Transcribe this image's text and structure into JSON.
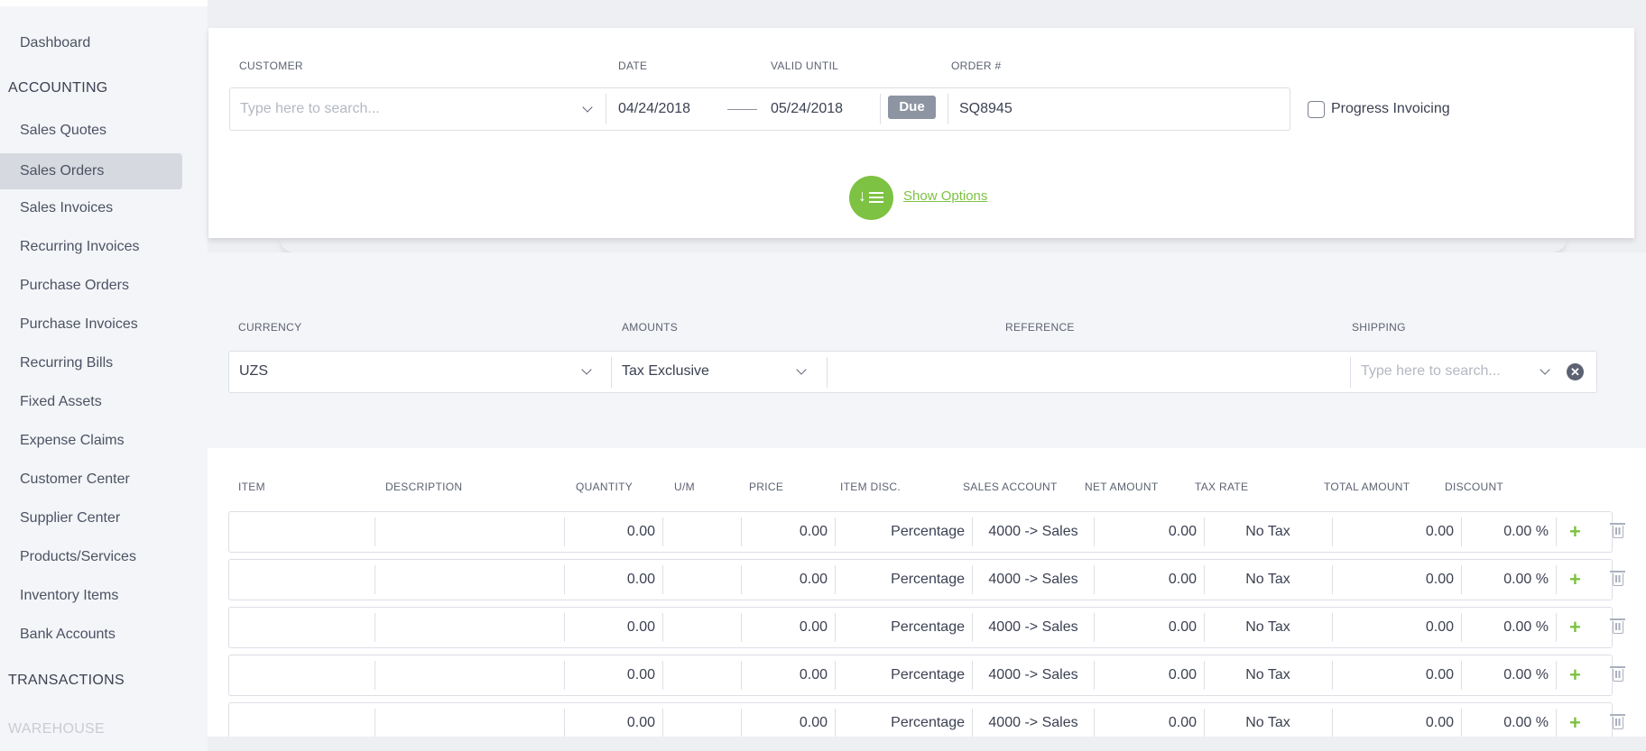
{
  "sidebar": {
    "items": [
      {
        "label": "Dashboard"
      },
      {
        "label": "Sales Quotes"
      },
      {
        "label": "Sales Orders",
        "active": true
      },
      {
        "label": "Sales Invoices"
      },
      {
        "label": "Recurring Invoices"
      },
      {
        "label": "Purchase Orders"
      },
      {
        "label": "Purchase Invoices"
      },
      {
        "label": "Recurring Bills"
      },
      {
        "label": "Fixed Assets"
      },
      {
        "label": "Expense Claims"
      },
      {
        "label": "Customer Center"
      },
      {
        "label": "Supplier Center"
      },
      {
        "label": "Products/Services"
      },
      {
        "label": "Inventory Items"
      },
      {
        "label": "Bank Accounts"
      }
    ],
    "sections": {
      "accounting": "ACCOUNTING",
      "transactions": "TRANSACTIONS",
      "warehouse": "WAREHOUSE"
    }
  },
  "order": {
    "labels": {
      "customer": "CUSTOMER",
      "date": "DATE",
      "valid_until": "VALID UNTIL",
      "order_no": "ORDER #"
    },
    "customer_placeholder": "Type here to search...",
    "date": "04/24/2018",
    "valid_until": "05/24/2018",
    "due_badge": "Due",
    "order_no": "SQ8945",
    "progress_invoicing": "Progress Invoicing",
    "show_options": "Show Options"
  },
  "details": {
    "labels": {
      "currency": "CURRENCY",
      "amounts": "AMOUNTS",
      "reference": "REFERENCE",
      "shipping": "SHIPPING"
    },
    "currency": "UZS",
    "amounts": "Tax Exclusive",
    "reference": "",
    "shipping_placeholder": "Type here to search..."
  },
  "lines": {
    "headers": [
      "ITEM",
      "DESCRIPTION",
      "QUANTITY",
      "U/M",
      "PRICE",
      "ITEM DISC.",
      "SALES ACCOUNT",
      "NET AMOUNT",
      "TAX RATE",
      "TOTAL AMOUNT",
      "DISCOUNT"
    ],
    "rows": [
      {
        "item": "",
        "description": "",
        "quantity": "0.00",
        "um": "",
        "price": "0.00",
        "item_disc": "Percentage",
        "sales_account": "4000 -> Sales",
        "net_amount": "0.00",
        "tax_rate": "No Tax",
        "total_amount": "0.00",
        "discount": "0.00 %"
      },
      {
        "item": "",
        "description": "",
        "quantity": "0.00",
        "um": "",
        "price": "0.00",
        "item_disc": "Percentage",
        "sales_account": "4000 -> Sales",
        "net_amount": "0.00",
        "tax_rate": "No Tax",
        "total_amount": "0.00",
        "discount": "0.00 %"
      },
      {
        "item": "",
        "description": "",
        "quantity": "0.00",
        "um": "",
        "price": "0.00",
        "item_disc": "Percentage",
        "sales_account": "4000 -> Sales",
        "net_amount": "0.00",
        "tax_rate": "No Tax",
        "total_amount": "0.00",
        "discount": "0.00 %"
      },
      {
        "item": "",
        "description": "",
        "quantity": "0.00",
        "um": "",
        "price": "0.00",
        "item_disc": "Percentage",
        "sales_account": "4000 -> Sales",
        "net_amount": "0.00",
        "tax_rate": "No Tax",
        "total_amount": "0.00",
        "discount": "0.00 %"
      },
      {
        "item": "",
        "description": "",
        "quantity": "0.00",
        "um": "",
        "price": "0.00",
        "item_disc": "Percentage",
        "sales_account": "4000 -> Sales",
        "net_amount": "0.00",
        "tax_rate": "No Tax",
        "total_amount": "0.00",
        "discount": "0.00 %"
      }
    ]
  },
  "colors": {
    "accent_green": "#7dc242",
    "badge_gray": "#8d95a3",
    "active_nav_bg": "#d6d9df"
  }
}
